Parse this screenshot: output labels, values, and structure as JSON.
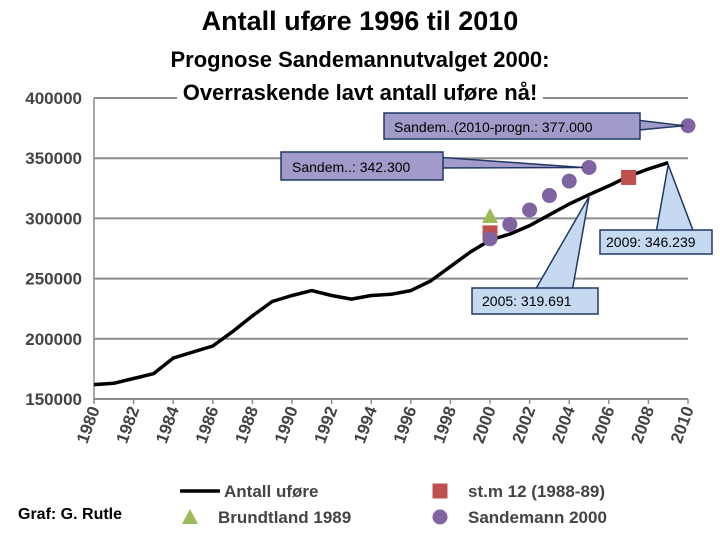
{
  "chart_data": {
    "type": "line",
    "title": "Antall uføre 1996 til 2010",
    "subtitle_line1": "Prognose Sandemannutvalget 2000:",
    "subtitle_line2": "Overraskende lavt antall uføre nå!",
    "credit": "Graf: G. Rutle",
    "xlim": [
      1980,
      2010
    ],
    "ylim": [
      150000,
      400000
    ],
    "x_ticks": [
      "1980",
      "1982",
      "1984",
      "1986",
      "1988",
      "1990",
      "1992",
      "1994",
      "1996",
      "1998",
      "2000",
      "2002",
      "2004",
      "2006",
      "2008",
      "2010"
    ],
    "y_ticks": [
      "400000",
      "350000",
      "300000",
      "250000",
      "200000",
      "150000"
    ],
    "series": [
      {
        "name": "Antall uføre",
        "kind": "line",
        "color": "#000000",
        "x": [
          1980,
          1981,
          1982,
          1983,
          1984,
          1985,
          1986,
          1987,
          1988,
          1989,
          1990,
          1991,
          1992,
          1993,
          1994,
          1995,
          1996,
          1997,
          1998,
          1999,
          2000,
          2001,
          2002,
          2003,
          2004,
          2005,
          2006,
          2007,
          2008,
          2009
        ],
        "y": [
          162000,
          163000,
          167000,
          171000,
          184000,
          189000,
          194000,
          206000,
          219000,
          231000,
          236000,
          240000,
          236000,
          233000,
          236000,
          237000,
          240000,
          248000,
          260000,
          272000,
          282000,
          287000,
          294000,
          303000,
          312000,
          319691,
          327000,
          335000,
          341000,
          346239
        ]
      },
      {
        "name": "st.m 12 (1988-89)",
        "kind": "square",
        "color": "#c0504d",
        "x": [
          2000,
          2007
        ],
        "y": [
          288000,
          334000
        ]
      },
      {
        "name": "Brundtland 1989",
        "kind": "triangle",
        "color": "#9bbb59",
        "x": [
          2000
        ],
        "y": [
          302000
        ]
      },
      {
        "name": "Sandemann 2000",
        "kind": "circle",
        "color": "#8064a2",
        "x": [
          2000,
          2001,
          2002,
          2003,
          2004,
          2005,
          2010
        ],
        "y": [
          283000,
          295000,
          307000,
          319000,
          331000,
          342300,
          377000
        ]
      }
    ],
    "annotations": [
      {
        "text": "Sandem..(2010-progn.: 377.000",
        "x": 2010,
        "y": 377000,
        "style": "purple"
      },
      {
        "text": "Sandem..: 342.300",
        "x": 2005,
        "y": 342300,
        "style": "purple"
      },
      {
        "text": "2009: 346.239",
        "x": 2009,
        "y": 346239,
        "style": "blue"
      },
      {
        "text": "2005: 319.691",
        "x": 2005,
        "y": 319691,
        "style": "blue"
      }
    ],
    "legend": [
      "Antall uføre",
      "st.m 12 (1988-89)",
      "Brundtland 1989",
      "Sandemann 2000"
    ],
    "grid": true,
    "colors": {
      "grid": "#8c8c8c",
      "callout_purple": "#a09bc8",
      "callout_blue": "#c5d9f1",
      "callout_border": "#1f3864"
    }
  }
}
